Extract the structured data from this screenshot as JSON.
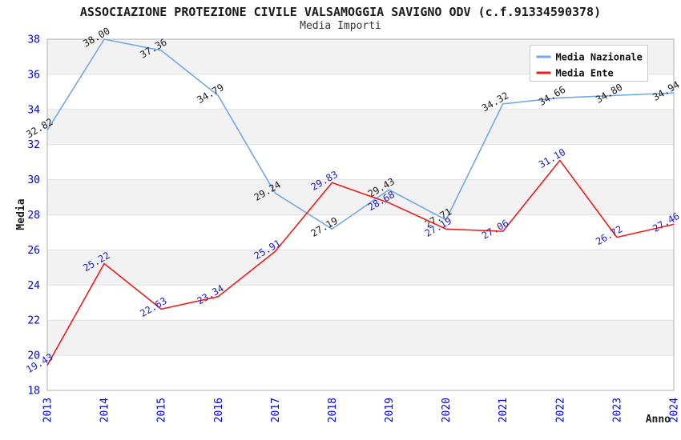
{
  "chart": {
    "title": "ASSOCIAZIONE PROTEZIONE CIVILE VALSAMOGGIA SAVIGNO ODV (c.f.91334590378)",
    "subtitle": "Media Importi"
  },
  "chart_data": {
    "type": "line",
    "title": "ASSOCIAZIONE PROTEZIONE CIVILE VALSAMOGGIA SAVIGNO ODV (c.f.91334590378)",
    "subtitle": "Media Importi",
    "xlabel": "Anno",
    "ylabel": "Media",
    "x": [
      "2013",
      "2014",
      "2015",
      "2016",
      "2017",
      "2018",
      "2019",
      "2020",
      "2021",
      "2022",
      "2023",
      "2024"
    ],
    "ylim": [
      18,
      38
    ],
    "ytick_step": 2,
    "grid": "horizontal-bands-alternating",
    "legend_position": "top-right",
    "series": [
      {
        "name": "Media Nazionale",
        "color": "#74a8e4",
        "label_color": "#1a1a1a",
        "values": [
          32.82,
          38.0,
          37.36,
          34.79,
          29.24,
          27.19,
          29.43,
          27.71,
          34.32,
          34.66,
          34.8,
          34.94
        ]
      },
      {
        "name": "Media Ente",
        "color": "#ee1c1c",
        "label_color": "#1c1ccc",
        "values": [
          19.43,
          25.22,
          22.63,
          23.34,
          25.91,
          29.83,
          28.68,
          27.19,
          27.06,
          31.1,
          26.72,
          27.46
        ]
      }
    ],
    "colors": {
      "tick_label": "#0000dd",
      "band": "#f2f2f2",
      "grid_line": "#e0e0e0",
      "plot_border": "#b0b0b0",
      "legend_border": "#cccccc",
      "legend_background": "#ffffff"
    }
  }
}
